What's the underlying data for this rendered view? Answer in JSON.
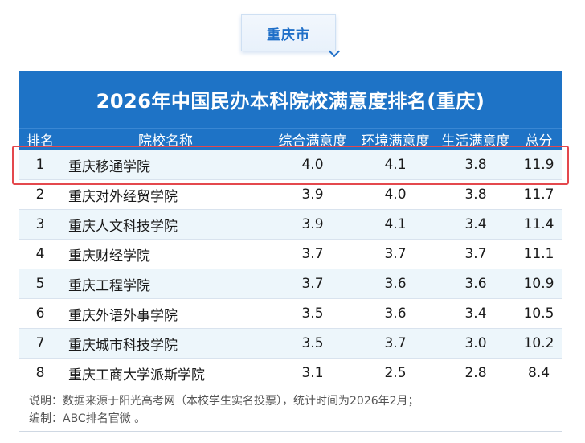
{
  "region_tag": "重庆市",
  "title": "2026年中国民办本科院校满意度排名(重庆)",
  "headers": {
    "rank": "排名",
    "name": "院校名称",
    "overall": "综合满意度",
    "environment": "环境满意度",
    "life": "生活满意度",
    "total": "总分"
  },
  "rows": [
    {
      "rank": "1",
      "name": "重庆移通学院",
      "overall": "4.0",
      "environment": "4.1",
      "life": "3.8",
      "total": "11.9"
    },
    {
      "rank": "2",
      "name": "重庆对外经贸学院",
      "overall": "3.9",
      "environment": "4.0",
      "life": "3.8",
      "total": "11.7"
    },
    {
      "rank": "3",
      "name": "重庆人文科技学院",
      "overall": "3.9",
      "environment": "4.1",
      "life": "3.4",
      "total": "11.4"
    },
    {
      "rank": "4",
      "name": "重庆财经学院",
      "overall": "3.7",
      "environment": "3.7",
      "life": "3.7",
      "total": "11.1"
    },
    {
      "rank": "5",
      "name": "重庆工程学院",
      "overall": "3.7",
      "environment": "3.6",
      "life": "3.6",
      "total": "10.9"
    },
    {
      "rank": "6",
      "name": "重庆外语外事学院",
      "overall": "3.5",
      "environment": "3.6",
      "life": "3.4",
      "total": "10.5"
    },
    {
      "rank": "7",
      "name": "重庆城市科技学院",
      "overall": "3.5",
      "environment": "3.7",
      "life": "3.0",
      "total": "10.2"
    },
    {
      "rank": "8",
      "name": "重庆工商大学派斯学院",
      "overall": "3.1",
      "environment": "2.5",
      "life": "2.8",
      "total": "8.4"
    }
  ],
  "notes": {
    "line1": "说明：数据来源于阳光高考网（本校学生实名投票），统计时间为2026年2月；",
    "line2": "编制：ABC排名官微 。"
  },
  "colors": {
    "header_bg": "#1e73c6",
    "highlight_border": "#e4484d",
    "row_alt": "#edf6fb"
  }
}
